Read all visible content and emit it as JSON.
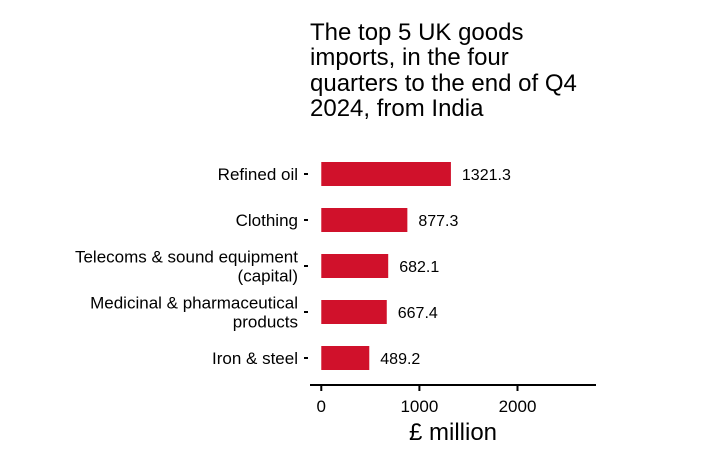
{
  "colors": {
    "bar": "#D0112B",
    "axis": "#000000",
    "text": "#000000"
  },
  "chart_data": {
    "type": "bar",
    "orientation": "horizontal",
    "title_lines": [
      "The top 5 UK goods",
      "imports, in the four",
      "quarters to the end of Q4",
      "2024, from India"
    ],
    "xlabel": "£ million",
    "ylabel": "",
    "categories": [
      [
        "Refined oil"
      ],
      [
        "Clothing"
      ],
      [
        "Telecoms & sound equipment",
        "(capital)"
      ],
      [
        "Medicinal & pharmaceutical",
        "products"
      ],
      [
        "Iron & steel"
      ]
    ],
    "values": [
      1321.3,
      877.3,
      682.1,
      667.4,
      489.2
    ],
    "value_labels": [
      "1321.3",
      "877.3",
      "682.1",
      "667.4",
      "489.2"
    ],
    "xlim": [
      -115,
      2800
    ],
    "xticks": [
      0,
      1000,
      2000
    ],
    "xtick_labels": [
      "0",
      "1000",
      "2000"
    ],
    "grid": false,
    "legend": "none"
  }
}
